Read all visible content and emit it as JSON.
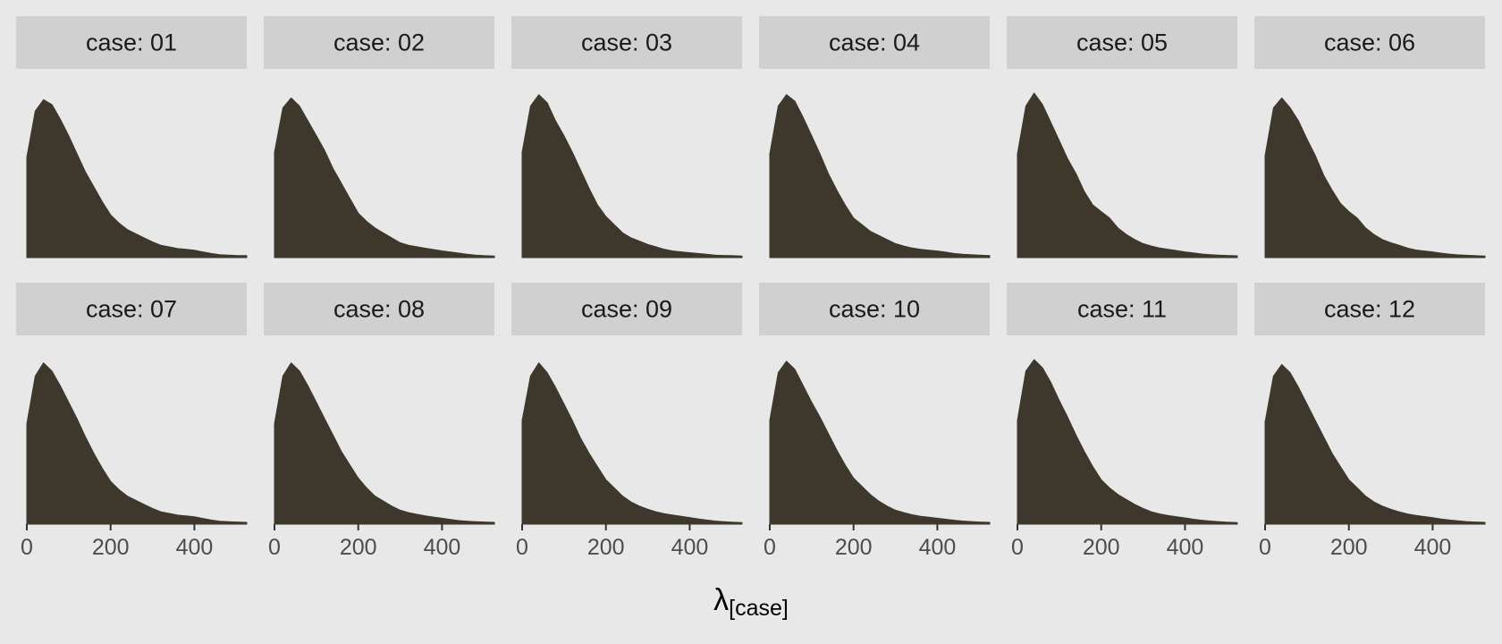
{
  "chart_data": {
    "type": "area",
    "layout": {
      "rows": 2,
      "cols": 6
    },
    "xlabel_symbol": "λ",
    "xlabel_subscript": "[case]",
    "ylabel": "",
    "xlim": [
      0,
      525
    ],
    "x_ticks": [
      0,
      200,
      400
    ],
    "x_tick_labels": [
      "0",
      "200",
      "400"
    ],
    "y_axis_shown": false,
    "grid": false,
    "fill_color": "#3e382c",
    "strip_color": "#d0d0d0",
    "panel_color": "#e8e8e8",
    "x": [
      0,
      20,
      40,
      60,
      80,
      100,
      120,
      140,
      160,
      180,
      200,
      220,
      240,
      260,
      280,
      300,
      320,
      340,
      360,
      380,
      400,
      420,
      440,
      460,
      480,
      500,
      525
    ],
    "panels": [
      {
        "label": "case: 01",
        "density": [
          0.61,
          0.89,
          0.96,
          0.93,
          0.84,
          0.74,
          0.63,
          0.52,
          0.43,
          0.34,
          0.26,
          0.21,
          0.17,
          0.145,
          0.12,
          0.095,
          0.075,
          0.065,
          0.055,
          0.05,
          0.045,
          0.035,
          0.025,
          0.018,
          0.015,
          0.013,
          0.012
        ]
      },
      {
        "label": "case: 02",
        "density": [
          0.64,
          0.91,
          0.97,
          0.92,
          0.83,
          0.74,
          0.65,
          0.54,
          0.45,
          0.36,
          0.27,
          0.22,
          0.18,
          0.15,
          0.12,
          0.09,
          0.075,
          0.066,
          0.057,
          0.049,
          0.041,
          0.034,
          0.027,
          0.02,
          0.015,
          0.012,
          0.01
        ]
      },
      {
        "label": "case: 03",
        "density": [
          0.64,
          0.92,
          0.99,
          0.94,
          0.83,
          0.74,
          0.64,
          0.53,
          0.42,
          0.32,
          0.25,
          0.2,
          0.15,
          0.12,
          0.1,
          0.08,
          0.065,
          0.05,
          0.04,
          0.035,
          0.03,
          0.025,
          0.02,
          0.015,
          0.013,
          0.012,
          0.01
        ]
      },
      {
        "label": "case: 04",
        "density": [
          0.63,
          0.92,
          0.99,
          0.95,
          0.85,
          0.74,
          0.63,
          0.51,
          0.41,
          0.32,
          0.24,
          0.2,
          0.16,
          0.135,
          0.11,
          0.085,
          0.07,
          0.058,
          0.05,
          0.045,
          0.04,
          0.033,
          0.025,
          0.02,
          0.018,
          0.015,
          0.012
        ]
      },
      {
        "label": "case: 05",
        "density": [
          0.63,
          0.92,
          1.0,
          0.93,
          0.82,
          0.71,
          0.6,
          0.51,
          0.4,
          0.32,
          0.28,
          0.24,
          0.18,
          0.14,
          0.11,
          0.085,
          0.07,
          0.058,
          0.05,
          0.043,
          0.035,
          0.028,
          0.022,
          0.018,
          0.015,
          0.013,
          0.011
        ]
      },
      {
        "label": "case: 06",
        "density": [
          0.62,
          0.91,
          0.97,
          0.91,
          0.83,
          0.72,
          0.62,
          0.5,
          0.41,
          0.33,
          0.28,
          0.24,
          0.18,
          0.14,
          0.11,
          0.09,
          0.075,
          0.058,
          0.046,
          0.04,
          0.035,
          0.027,
          0.021,
          0.017,
          0.014,
          0.012,
          0.01
        ]
      },
      {
        "label": "case: 07",
        "density": [
          0.61,
          0.9,
          0.98,
          0.93,
          0.84,
          0.74,
          0.64,
          0.53,
          0.43,
          0.34,
          0.26,
          0.21,
          0.17,
          0.145,
          0.12,
          0.095,
          0.075,
          0.065,
          0.055,
          0.05,
          0.045,
          0.035,
          0.025,
          0.018,
          0.015,
          0.013,
          0.011
        ]
      },
      {
        "label": "case: 08",
        "density": [
          0.61,
          0.9,
          0.98,
          0.93,
          0.84,
          0.74,
          0.64,
          0.54,
          0.44,
          0.36,
          0.28,
          0.22,
          0.17,
          0.14,
          0.11,
          0.085,
          0.07,
          0.06,
          0.05,
          0.043,
          0.036,
          0.028,
          0.022,
          0.018,
          0.015,
          0.013,
          0.011
        ]
      },
      {
        "label": "case: 09",
        "density": [
          0.63,
          0.9,
          0.98,
          0.92,
          0.83,
          0.73,
          0.63,
          0.52,
          0.43,
          0.35,
          0.27,
          0.22,
          0.17,
          0.135,
          0.11,
          0.09,
          0.075,
          0.063,
          0.055,
          0.048,
          0.04,
          0.032,
          0.025,
          0.019,
          0.015,
          0.012,
          0.01
        ]
      },
      {
        "label": "case: 10",
        "density": [
          0.63,
          0.92,
          0.99,
          0.94,
          0.84,
          0.74,
          0.65,
          0.55,
          0.45,
          0.36,
          0.28,
          0.23,
          0.18,
          0.14,
          0.11,
          0.085,
          0.07,
          0.057,
          0.048,
          0.042,
          0.036,
          0.03,
          0.024,
          0.019,
          0.016,
          0.013,
          0.011
        ]
      },
      {
        "label": "case: 11",
        "density": [
          0.63,
          0.93,
          1.0,
          0.95,
          0.86,
          0.75,
          0.65,
          0.54,
          0.44,
          0.35,
          0.27,
          0.22,
          0.18,
          0.15,
          0.12,
          0.095,
          0.075,
          0.062,
          0.052,
          0.045,
          0.038,
          0.03,
          0.024,
          0.019,
          0.015,
          0.012,
          0.01
        ]
      },
      {
        "label": "case: 12",
        "density": [
          0.62,
          0.9,
          0.97,
          0.92,
          0.83,
          0.73,
          0.63,
          0.53,
          0.43,
          0.35,
          0.27,
          0.22,
          0.17,
          0.135,
          0.11,
          0.09,
          0.075,
          0.062,
          0.053,
          0.046,
          0.039,
          0.031,
          0.025,
          0.02,
          0.016,
          0.013,
          0.011
        ]
      }
    ]
  }
}
